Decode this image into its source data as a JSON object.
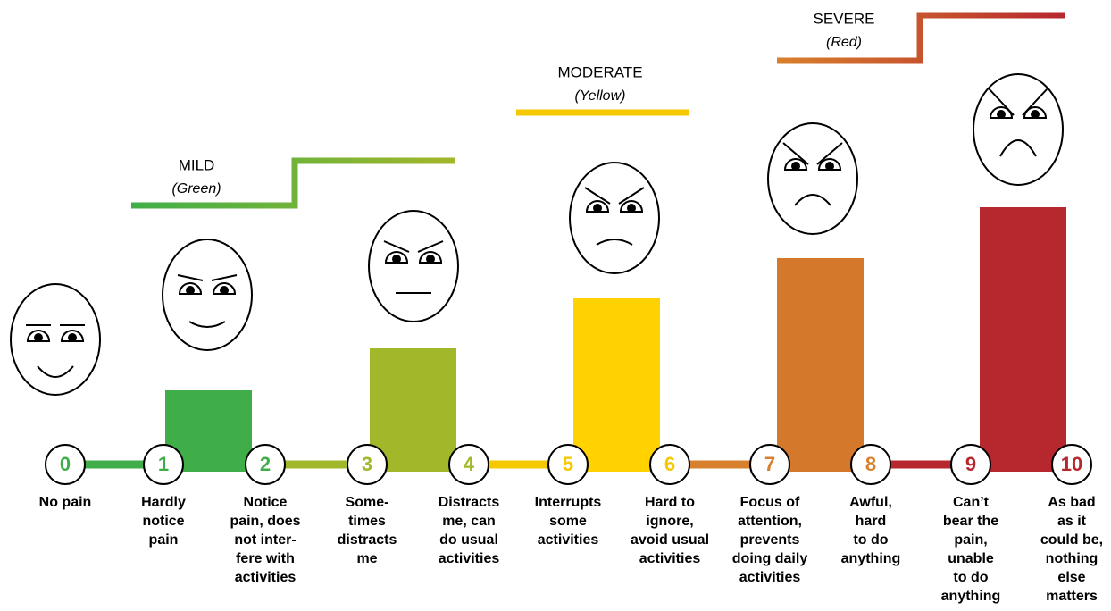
{
  "bands": [
    {
      "title": "MILD",
      "subtitle": "(Green)"
    },
    {
      "title": "MODERATE",
      "subtitle": "(Yellow)"
    },
    {
      "title": "SEVERE",
      "subtitle": "(Red)"
    }
  ],
  "levels": [
    {
      "number": 0,
      "description": [
        "No pain"
      ]
    },
    {
      "number": 1,
      "description": [
        "Hardly",
        "notice",
        "pain"
      ]
    },
    {
      "number": 2,
      "description": [
        "Notice",
        "pain, does",
        "not inter-",
        "fere with",
        "activities"
      ]
    },
    {
      "number": 3,
      "description": [
        "Some-",
        "times",
        "distracts",
        "me"
      ]
    },
    {
      "number": 4,
      "description": [
        "Distracts",
        "me, can",
        "do usual",
        "activities"
      ]
    },
    {
      "number": 5,
      "description": [
        "Interrupts",
        "some",
        "activities"
      ]
    },
    {
      "number": 6,
      "description": [
        "Hard to",
        "ignore,",
        "avoid usual",
        "activities"
      ]
    },
    {
      "number": 7,
      "description": [
        "Focus of",
        "attention,",
        "prevents",
        "doing daily",
        "activities"
      ]
    },
    {
      "number": 8,
      "description": [
        "Awful,",
        "hard",
        "to do",
        "anything"
      ]
    },
    {
      "number": 9,
      "description": [
        "Can’t",
        "bear the",
        "pain,",
        "unable",
        "to do",
        "anything"
      ]
    },
    {
      "number": 10,
      "description": [
        "As bad",
        "as it",
        "could be,",
        "nothing",
        "else",
        "matters"
      ]
    }
  ]
}
